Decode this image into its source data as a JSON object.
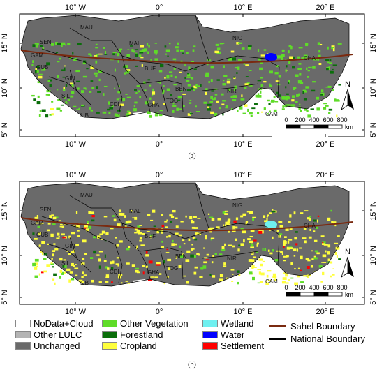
{
  "panels": [
    {
      "id": "a",
      "caption": "(a)",
      "top_ticks": [
        "10° W",
        "0°",
        "10° E",
        "20° E"
      ],
      "bottom_ticks": [
        "10° W",
        "0°",
        "10° E",
        "20° E"
      ],
      "left_ticks": [
        "15° N",
        "10° N",
        "5° N"
      ],
      "right_ticks": [
        "15° N",
        "10° N",
        "5° N"
      ],
      "countries": [
        "MAU",
        "SEN",
        "GAM",
        "GUB",
        "GIN",
        "SIL",
        "LIB",
        "CDI",
        "MAL",
        "BUF",
        "GHA",
        "TOG",
        "BEN",
        "NIG",
        "NIR",
        "CHA",
        "CAM"
      ],
      "scalebar": {
        "ticks": [
          "0",
          "200",
          "400",
          "600",
          "800"
        ],
        "unit": "km"
      },
      "north": "N"
    },
    {
      "id": "b",
      "caption": "(b)",
      "top_ticks": [
        "10° W",
        "0°",
        "10° E",
        "20° E"
      ],
      "bottom_ticks": [
        "10° W",
        "0°",
        "10° E",
        "20° E"
      ],
      "left_ticks": [
        "15° N",
        "10° N",
        "5° N"
      ],
      "right_ticks": [
        "15° N",
        "10° N",
        "5° N"
      ],
      "countries": [
        "MAU",
        "SEN",
        "GAM",
        "GUB",
        "GIN",
        "SIL",
        "LIB",
        "CDI",
        "MAL",
        "BUF",
        "GHA",
        "TOG",
        "BEN",
        "NIG",
        "NIR",
        "CHA",
        "CAM"
      ],
      "scalebar": {
        "ticks": [
          "0",
          "200",
          "400",
          "600",
          "800"
        ],
        "unit": "km"
      },
      "north": "N"
    }
  ],
  "legend": [
    {
      "label": "NoData+Cloud",
      "color": "#ffffff",
      "kind": "swatch"
    },
    {
      "label": "Other LULC",
      "color": "#b4b4b4",
      "kind": "swatch"
    },
    {
      "label": "Unchanged",
      "color": "#6a6a6a",
      "kind": "swatch"
    },
    {
      "label": "Other Vegetation",
      "color": "#5fdc28",
      "kind": "swatch"
    },
    {
      "label": "Forestland",
      "color": "#0a6e0a",
      "kind": "swatch"
    },
    {
      "label": "Cropland",
      "color": "#ffff3c",
      "kind": "swatch"
    },
    {
      "label": "Wetland",
      "color": "#6ff0f0",
      "kind": "swatch"
    },
    {
      "label": "Water",
      "color": "#0000ff",
      "kind": "swatch"
    },
    {
      "label": "Settlement",
      "color": "#ff0000",
      "kind": "swatch"
    },
    {
      "label": "Sahel Boundary",
      "color": "#7a2a10",
      "kind": "line"
    },
    {
      "label": "National Boundary",
      "color": "#000000",
      "kind": "line"
    }
  ],
  "colors": {
    "unchanged": "#6a6a6a",
    "sahel": "#7a2a10",
    "other_vegetation": "#5fdc28",
    "forestland": "#0a6e0a",
    "cropland": "#ffff3c",
    "water": "#0000ff",
    "wetland": "#6ff0f0",
    "settlement": "#ff0000"
  }
}
